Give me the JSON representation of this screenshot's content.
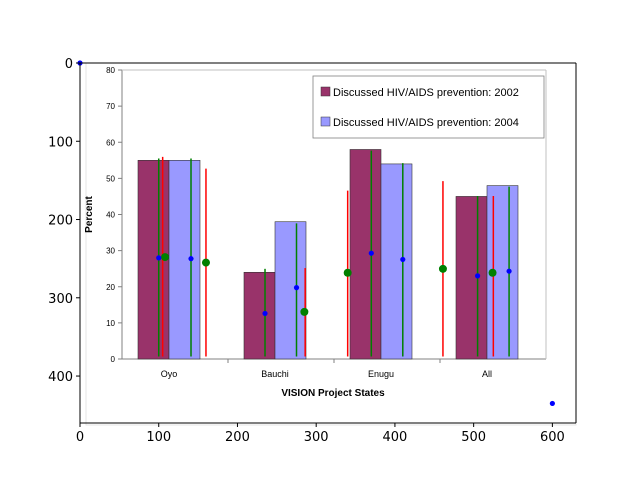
{
  "chart_data": {
    "type": "bar",
    "title": "",
    "xlabel": "VISION Project States",
    "ylabel": "Percent",
    "ylim": [
      0,
      80
    ],
    "yticks": [
      0,
      10,
      20,
      30,
      40,
      50,
      60,
      70,
      80
    ],
    "categories": [
      "Oyo",
      "Bauchi",
      "Enugu",
      "All"
    ],
    "series": [
      {
        "name": "Discussed HIV/AIDS prevention: 2002",
        "color": "#99336a",
        "values": [
          55,
          24,
          58,
          45
        ]
      },
      {
        "name": "Discussed HIV/AIDS prevention: 2004",
        "color": "#9999ff",
        "values": [
          55,
          38,
          54,
          48
        ]
      }
    ],
    "legend": "top-right",
    "grid": false,
    "overlay": {
      "xlim": [
        0,
        630
      ],
      "ylim": [
        460,
        0
      ],
      "xticks": [
        0,
        100,
        200,
        300,
        400,
        500,
        600
      ],
      "yticks": [
        0,
        100,
        200,
        300,
        400
      ],
      "red_lines": [
        {
          "x": 105,
          "y_top": 120,
          "y_bottom": 375
        },
        {
          "x": 160,
          "y_top": 135,
          "y_bottom": 375
        },
        {
          "x": 286,
          "y_top": 262,
          "y_bottom": 375
        },
        {
          "x": 340,
          "y_top": 163,
          "y_bottom": 375
        },
        {
          "x": 461,
          "y_top": 151,
          "y_bottom": 375
        },
        {
          "x": 525,
          "y_top": 170,
          "y_bottom": 375
        }
      ],
      "green_lines": [
        {
          "x": 100,
          "y_top": 122,
          "y_bottom": 375
        },
        {
          "x": 141,
          "y_top": 122,
          "y_bottom": 375
        },
        {
          "x": 235,
          "y_top": 263,
          "y_bottom": 375
        },
        {
          "x": 275,
          "y_top": 205,
          "y_bottom": 375
        },
        {
          "x": 370,
          "y_top": 112,
          "y_bottom": 375
        },
        {
          "x": 410,
          "y_top": 128,
          "y_bottom": 375
        },
        {
          "x": 505,
          "y_top": 170,
          "y_bottom": 375
        },
        {
          "x": 545,
          "y_top": 158,
          "y_bottom": 375
        }
      ],
      "green_dots": [
        {
          "x": 108,
          "y": 248
        },
        {
          "x": 160,
          "y": 255
        },
        {
          "x": 285,
          "y": 318
        },
        {
          "x": 340,
          "y": 268
        },
        {
          "x": 461,
          "y": 263
        },
        {
          "x": 524,
          "y": 268
        }
      ],
      "blue_dots": [
        {
          "x": 0,
          "y": 0
        },
        {
          "x": 100,
          "y": 249
        },
        {
          "x": 141,
          "y": 250
        },
        {
          "x": 235,
          "y": 320
        },
        {
          "x": 275,
          "y": 287
        },
        {
          "x": 370,
          "y": 243
        },
        {
          "x": 410,
          "y": 251
        },
        {
          "x": 505,
          "y": 272
        },
        {
          "x": 545,
          "y": 266
        },
        {
          "x": 600,
          "y": 435
        }
      ]
    }
  }
}
